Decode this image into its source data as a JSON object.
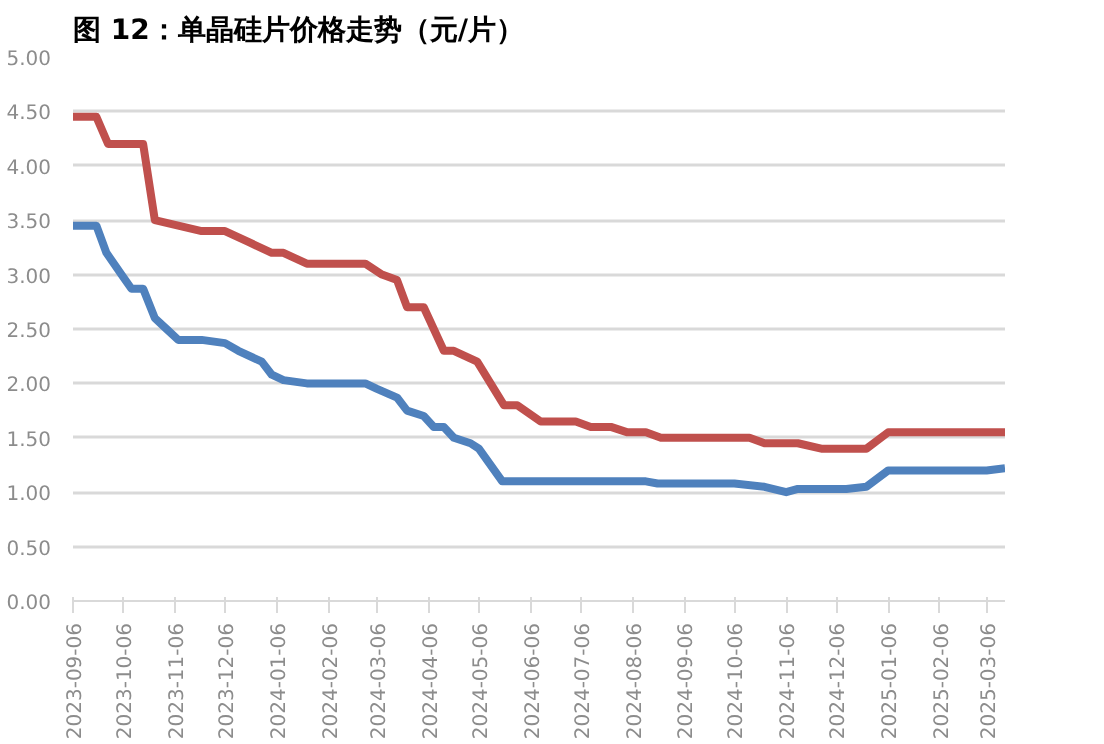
{
  "chart_data": {
    "type": "line",
    "title": "图 12：单晶硅片价格走势（元/片）",
    "xlim": [
      "2023-09-06",
      "2025-03-17"
    ],
    "xticks": [
      "2023-09-06",
      "2023-10-06",
      "2023-11-06",
      "2023-12-06",
      "2024-01-06",
      "2024-02-06",
      "2024-03-06",
      "2024-04-06",
      "2024-05-06",
      "2024-06-06",
      "2024-07-06",
      "2024-08-06",
      "2024-09-06",
      "2024-10-06",
      "2024-11-06",
      "2024-12-06",
      "2025-01-06",
      "2025-02-06",
      "2025-03-06"
    ],
    "ylim": [
      0,
      5
    ],
    "yticks": [
      {
        "value": 0,
        "label": "0.00"
      },
      {
        "value": 0.5,
        "label": "0.50"
      },
      {
        "value": 1,
        "label": "1.00"
      },
      {
        "value": 1.5,
        "label": "1.50"
      },
      {
        "value": 2,
        "label": "2.00"
      },
      {
        "value": 2.5,
        "label": "2.50"
      },
      {
        "value": 3,
        "label": "3.00"
      },
      {
        "value": 3.5,
        "label": "3.50"
      },
      {
        "value": 4,
        "label": "4.00"
      },
      {
        "value": 4.5,
        "label": "4.50"
      },
      {
        "value": 5,
        "label": "5.00"
      }
    ],
    "grid": "y",
    "line_style": "solid",
    "marker": "none",
    "series": [
      {
        "color": "#c0504d",
        "x": [
          "2023-09-06",
          "2023-09-20",
          "2023-09-27",
          "2023-10-18",
          "2023-10-25",
          "2023-11-08",
          "2023-11-22",
          "2023-12-06",
          "2023-12-20",
          "2024-01-03",
          "2024-01-10",
          "2024-01-24",
          "2024-02-28",
          "2024-03-09",
          "2024-03-18",
          "2024-03-24",
          "2024-04-03",
          "2024-04-15",
          "2024-04-21",
          "2024-05-05",
          "2024-05-21",
          "2024-05-29",
          "2024-06-12",
          "2024-07-03",
          "2024-07-12",
          "2024-07-24",
          "2024-08-03",
          "2024-08-14",
          "2024-08-23",
          "2024-10-15",
          "2024-10-24",
          "2024-11-13",
          "2024-11-27",
          "2024-12-24",
          "2025-01-06",
          "2025-03-17"
        ],
        "values": [
          4.45,
          4.45,
          4.2,
          4.2,
          3.5,
          3.45,
          3.4,
          3.4,
          3.3,
          3.2,
          3.2,
          3.1,
          3.1,
          3.0,
          2.95,
          2.7,
          2.7,
          2.3,
          2.3,
          2.2,
          1.8,
          1.8,
          1.65,
          1.65,
          1.6,
          1.6,
          1.55,
          1.55,
          1.5,
          1.5,
          1.45,
          1.45,
          1.4,
          1.4,
          1.55,
          1.55
        ]
      },
      {
        "color": "#4f81bd",
        "x": [
          "2023-09-06",
          "2023-09-20",
          "2023-09-26",
          "2023-10-05",
          "2023-10-11",
          "2023-10-18",
          "2023-10-25",
          "2023-11-01",
          "2023-11-08",
          "2023-11-22",
          "2023-12-06",
          "2023-12-14",
          "2023-12-28",
          "2024-01-03",
          "2024-01-10",
          "2024-01-24",
          "2024-02-28",
          "2024-03-06",
          "2024-03-18",
          "2024-03-24",
          "2024-04-03",
          "2024-04-09",
          "2024-04-15",
          "2024-04-21",
          "2024-05-01",
          "2024-05-06",
          "2024-05-20",
          "2024-08-14",
          "2024-08-21",
          "2024-10-06",
          "2024-10-24",
          "2024-11-06",
          "2024-11-13",
          "2024-12-12",
          "2024-12-24",
          "2025-01-06",
          "2025-03-06",
          "2025-03-17"
        ],
        "values": [
          3.45,
          3.45,
          3.2,
          3.0,
          2.87,
          2.87,
          2.6,
          2.5,
          2.4,
          2.4,
          2.37,
          2.3,
          2.2,
          2.08,
          2.03,
          2.0,
          2.0,
          1.95,
          1.87,
          1.75,
          1.7,
          1.6,
          1.6,
          1.5,
          1.45,
          1.4,
          1.1,
          1.1,
          1.08,
          1.08,
          1.05,
          1.0,
          1.03,
          1.03,
          1.05,
          1.2,
          1.2,
          1.22
        ]
      }
    ]
  }
}
